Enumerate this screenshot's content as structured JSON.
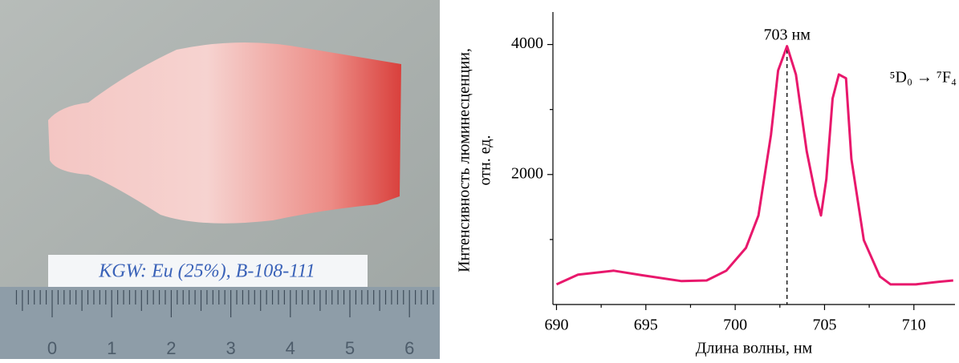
{
  "photo": {
    "label": "KGW: Eu (25%), B-108-111",
    "ruler_labels": [
      "0",
      "1",
      "2",
      "3",
      "4",
      "5",
      "6"
    ]
  },
  "chart_data": {
    "type": "line",
    "y_label": [
      "Интенсивность люминесценции,",
      "отн. ед."
    ],
    "x_label": "Длина волны, нм",
    "annotation": {
      "text": "703 нм",
      "x": 702.9
    },
    "transition_label": "⁵D₀ → ⁷F₄",
    "x": [
      690,
      691.2,
      693.2,
      694.8,
      697.0,
      698.4,
      699.5,
      700.6,
      701.3,
      702.0,
      702.4,
      702.9,
      703.4,
      704.0,
      704.5,
      704.8,
      705.1,
      705.45,
      705.8,
      706.2,
      706.5,
      707.2,
      708.1,
      708.7,
      710.1,
      711.4,
      712.2
    ],
    "series": [
      {
        "color": "#e8186c",
        "values": [
          310,
          460,
          520,
          450,
          360,
          370,
          520,
          870,
          1370,
          2610,
          3600,
          3975,
          3540,
          2360,
          1680,
          1370,
          1930,
          3170,
          3540,
          3480,
          2240,
          990,
          430,
          310,
          310,
          350,
          370
        ]
      }
    ],
    "xlim": [
      689.8,
      712.3
    ],
    "ylim": [
      0,
      4500
    ],
    "xticks": [
      690,
      695,
      700,
      705,
      710
    ],
    "xminor_ticks": [
      692.5,
      697.5,
      702.5,
      707.5
    ],
    "yticks": [
      2000,
      4000
    ],
    "yminor_ticks": [
      1000,
      3000
    ]
  }
}
